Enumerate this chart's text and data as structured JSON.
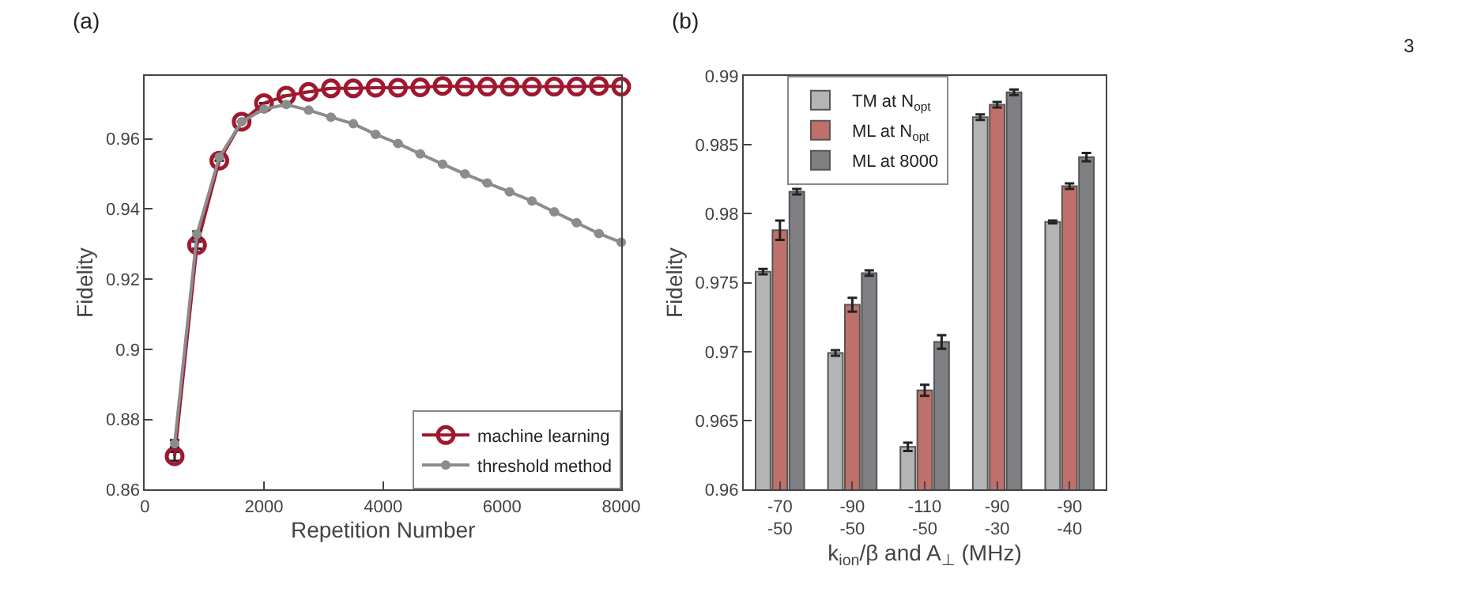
{
  "chart_data": [
    {
      "type": "line",
      "xlabel": "Repetition Number",
      "ylabel": "Fidelity",
      "annotations": [
        "(a)"
      ],
      "x": [
        500,
        875,
        1250,
        1625,
        2000,
        2375,
        2750,
        3125,
        3500,
        3875,
        4250,
        4625,
        5000,
        5375,
        5750,
        6125,
        6500,
        6875,
        7250,
        7625,
        8000
      ],
      "series": [
        {
          "name": "machine learning",
          "color": "#a0182f",
          "values": [
            0.8695,
            0.9297,
            0.9538,
            0.9649,
            0.9702,
            0.9723,
            0.9734,
            0.9744,
            0.9744,
            0.9746,
            0.9746,
            0.9747,
            0.9751,
            0.9749,
            0.9749,
            0.9749,
            0.9749,
            0.9749,
            0.9749,
            0.9751,
            0.9749
          ],
          "errors": [
            0.0013,
            0.001,
            null,
            null,
            null,
            null,
            null,
            null,
            null,
            null,
            null,
            null,
            null,
            null,
            null,
            null,
            null,
            null,
            null,
            null,
            null
          ]
        },
        {
          "name": "threshold method",
          "color": "#8c8c8c",
          "values": [
            0.8731,
            0.9328,
            0.9548,
            0.9649,
            0.9685,
            0.9698,
            0.9682,
            0.9662,
            0.9643,
            0.9613,
            0.9587,
            0.9557,
            0.9528,
            0.95,
            0.9474,
            0.9449,
            0.9423,
            0.9392,
            0.9361,
            0.933,
            0.9305
          ],
          "errors": [
            0.001,
            0.0008,
            null,
            null,
            null,
            null,
            null,
            null,
            null,
            null,
            null,
            null,
            null,
            null,
            null,
            null,
            null,
            null,
            null,
            null,
            null
          ]
        }
      ],
      "xlim": [
        0,
        8000
      ],
      "xticks": [
        0,
        2000,
        4000,
        6000,
        8000
      ],
      "ylim": [
        0.86,
        0.978
      ],
      "yticks": [
        0.86,
        0.88,
        0.9,
        0.92,
        0.94,
        0.96
      ],
      "marker": "circle",
      "line_style": "solid",
      "legend": "bottom right"
    },
    {
      "type": "bar",
      "xlabel": "k$_{ion}$/β and A$_{⊥}$ (MHz)",
      "ylabel": "Fidelity",
      "annotations": [
        "(b)",
        "3"
      ],
      "categories": [
        "-70\n-50",
        "-90\n-50",
        "-110\n-50",
        "-90\n-30",
        "-90\n-40"
      ],
      "series": [
        {
          "name": "TM at N$_{opt}$",
          "color": "#b4b4b4",
          "values": [
            0.9758,
            0.9699,
            0.9631,
            0.987,
            0.9794
          ],
          "errors": [
            0.0002,
            0.0002,
            0.0003,
            0.0002,
            0.0001
          ]
        },
        {
          "name": "ML at N$_{opt}$",
          "color": "#c0706a",
          "values": [
            0.9788,
            0.9734,
            0.9672,
            0.9879,
            0.982
          ],
          "errors": [
            0.0007,
            0.0005,
            0.0004,
            0.0002,
            0.0002
          ]
        },
        {
          "name": "ML at 8000",
          "color": "#7f7f84",
          "values": [
            0.9816,
            0.9757,
            0.9707,
            0.9888,
            0.9841
          ],
          "errors": [
            0.0002,
            0.0002,
            0.0005,
            0.0002,
            0.0003
          ]
        }
      ],
      "ylim": [
        0.96,
        0.99
      ],
      "yticks": [
        0.96,
        0.965,
        0.97,
        0.975,
        0.98,
        0.985,
        0.99
      ],
      "legend": "top left"
    }
  ]
}
